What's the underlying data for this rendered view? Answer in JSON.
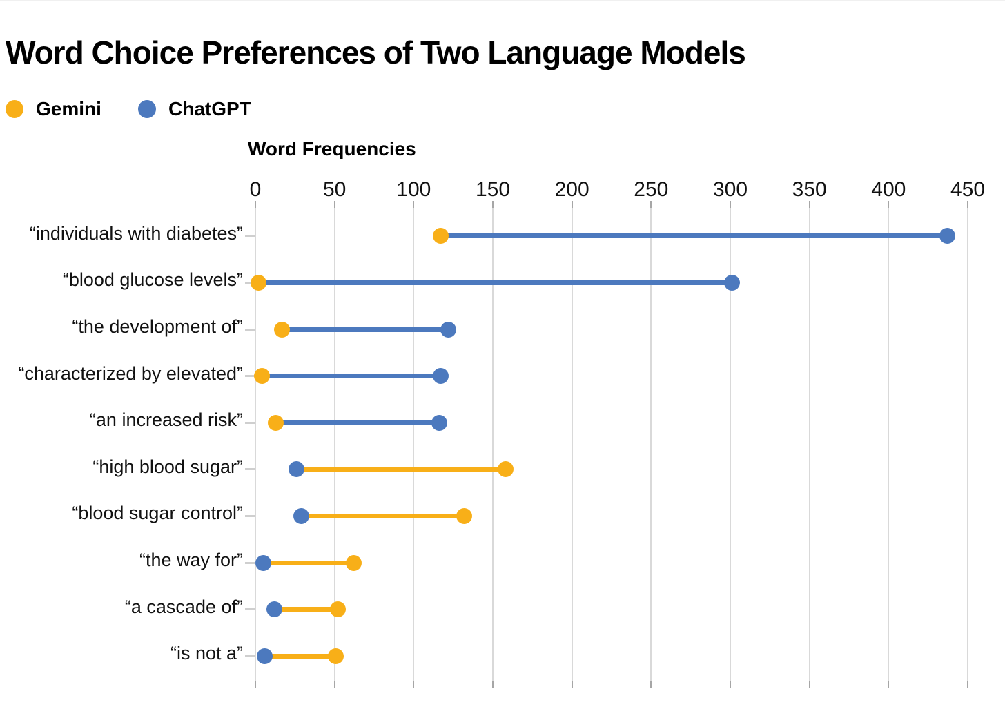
{
  "page": {
    "background": "#ffffff"
  },
  "title": "Word Choice Preferences of Two Language Models",
  "legend": [
    {
      "label": "Gemini",
      "color": "#F8AF18",
      "icon": "circle"
    },
    {
      "label": "ChatGPT",
      "color": "#4C79BE",
      "icon": "circle"
    }
  ],
  "chart_data": {
    "type": "scatter",
    "variant": "dumbbell",
    "title": "Word Choice Preferences of Two Language Models",
    "axis_title": "Word Frequencies",
    "xlabel": "Word Frequencies",
    "ylabel": "",
    "xlim": [
      0,
      450
    ],
    "xticks": [
      0,
      50,
      100,
      150,
      200,
      250,
      300,
      350,
      400,
      450
    ],
    "grid": "vertical-only",
    "legend_position": "top-left",
    "categories": [
      "“individuals with diabetes”",
      "“blood glucose levels”",
      "“the development of”",
      "“characterized by elevated”",
      "“an increased risk”",
      "“high blood sugar”",
      "“blood sugar control”",
      "“the way for”",
      "“a cascade of”",
      "“is not a”"
    ],
    "series": [
      {
        "name": "Gemini",
        "color": "#F8AF18",
        "values": [
          117,
          2,
          17,
          4,
          13,
          158,
          132,
          62,
          52,
          51
        ]
      },
      {
        "name": "ChatGPT",
        "color": "#4C79BE",
        "values": [
          437,
          301,
          122,
          117,
          116,
          26,
          29,
          5,
          12,
          6
        ]
      }
    ],
    "connector_rule": "connector line takes the color of the series with the higher value",
    "colors": {
      "gridline": "#d9d9d9",
      "tick": "#a6a6a6",
      "category_tick": "#cfcfcf",
      "text": "#111111"
    }
  }
}
